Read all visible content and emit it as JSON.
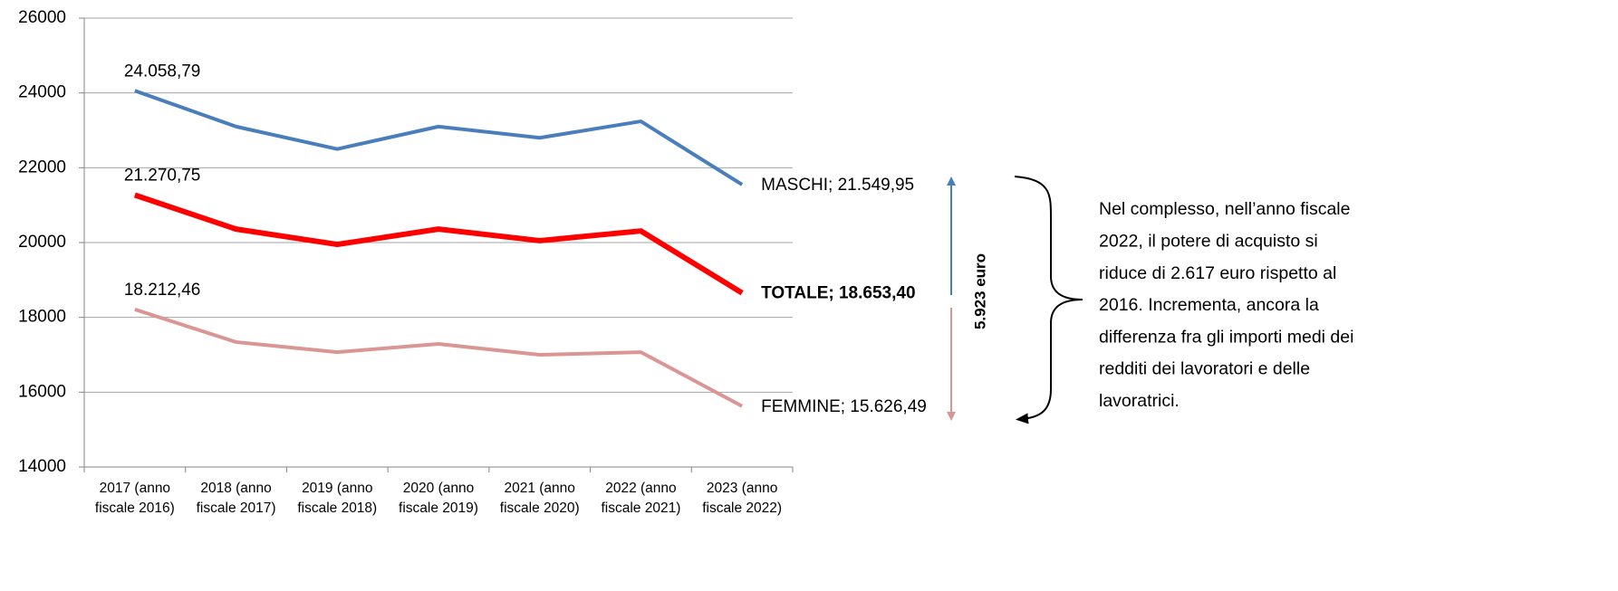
{
  "chart_data": {
    "type": "line",
    "categories": [
      "2017 (anno fiscale 2016)",
      "2018 (anno fiscale 2017)",
      "2019 (anno fiscale 2018)",
      "2020 (anno fiscale 2019)",
      "2021 (anno fiscale 2020)",
      "2022 (anno fiscale 2021)",
      "2023 (anno fiscale 2022)"
    ],
    "series": [
      {
        "name": "MASCHI",
        "color": "#4a7ebb",
        "values": [
          24058.79,
          23100,
          22500,
          23100,
          22800,
          23240,
          21549.95
        ],
        "value_labels": [
          "24.058,79",
          null,
          null,
          null,
          null,
          null,
          "MASCHI; 21.549,95"
        ]
      },
      {
        "name": "TOTALE",
        "color": "#ff0000",
        "emphasis": true,
        "values": [
          21270.75,
          20360,
          19950,
          20360,
          20050,
          20310,
          18653.4
        ],
        "value_labels": [
          "21.270,75",
          null,
          null,
          null,
          null,
          null,
          "TOTALE; 18.653,40"
        ]
      },
      {
        "name": "FEMMINE",
        "color": "#d99694",
        "values": [
          18212.46,
          17340,
          17070,
          17290,
          17000,
          17070,
          15626.49
        ],
        "value_labels": [
          "18.212,46",
          null,
          null,
          null,
          null,
          null,
          "FEMMINE; 15.626,49"
        ]
      }
    ],
    "ylim": [
      14000,
      26000
    ],
    "yticks": [
      14000,
      16000,
      18000,
      20000,
      22000,
      24000,
      26000
    ],
    "grid": true,
    "annotations": {
      "arrow_label": "5.923  euro",
      "note": [
        "Nel complesso, nell’anno fiscale",
        "2022, il potere di acquisto si",
        "riduce di  2.617 euro rispetto al",
        "2016. Incrementa, ancora  la",
        "differenza fra gli importi medi dei",
        "redditi dei lavoratori  e delle",
        "lavoratrici."
      ]
    }
  }
}
